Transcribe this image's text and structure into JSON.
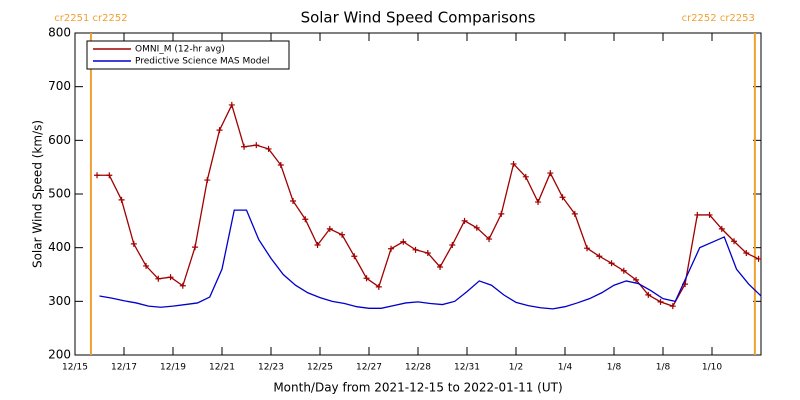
{
  "chart_data": {
    "type": "line",
    "title": "Solar Wind Speed Comparisons",
    "xlabel": "Month/Day from 2021-12-15 to 2022-01-11 (UT)",
    "ylabel": "Solar Wind Speed (km/s)",
    "xlim": [
      0,
      28
    ],
    "ylim": [
      200,
      800
    ],
    "yticks": [
      200,
      300,
      400,
      500,
      600,
      700,
      800
    ],
    "xticks": [
      {
        "value": 0,
        "label": "12/15"
      },
      {
        "value": 2,
        "label": "12/17"
      },
      {
        "value": 4,
        "label": "12/19"
      },
      {
        "value": 6,
        "label": "12/21"
      },
      {
        "value": 8,
        "label": "12/23"
      },
      {
        "value": 10,
        "label": "12/25"
      },
      {
        "value": 12,
        "label": "12/27"
      },
      {
        "value": 14,
        "label": "12/28"
      },
      {
        "value": 16,
        "label": "12/31"
      },
      {
        "value": 18,
        "label": "1/2"
      },
      {
        "value": 20,
        "label": "1/4"
      },
      {
        "value": 22,
        "label": "1/8"
      },
      {
        "value": 24,
        "label": "1/8"
      },
      {
        "value": 26,
        "label": "1/10"
      }
    ],
    "annotations": [
      {
        "text": "cr2251 cr2252",
        "x": 0.65,
        "color": "#f0a030"
      },
      {
        "text": "cr2252 cr2253",
        "x": 27.75,
        "color": "#f0a030"
      }
    ],
    "legend": "upper left",
    "series": [
      {
        "name": "OMNI_M (12-hr avg)",
        "color": "#a00000",
        "marker": "+",
        "x": [
          0.9,
          1.4,
          1.9,
          2.4,
          2.9,
          3.4,
          3.9,
          4.4,
          4.9,
          5.4,
          5.9,
          6.4,
          6.9,
          7.4,
          7.9,
          8.4,
          8.9,
          9.4,
          9.9,
          10.4,
          10.9,
          11.4,
          11.9,
          12.4,
          12.9,
          13.4,
          13.9,
          14.4,
          14.9,
          15.4,
          15.9,
          16.4,
          16.9,
          17.4,
          17.9,
          18.4,
          18.9,
          19.4,
          19.9,
          20.4,
          20.9,
          21.4,
          21.9,
          22.4,
          22.9,
          23.4,
          23.9,
          24.4,
          24.9,
          25.4,
          25.9,
          26.4,
          26.9,
          27.4,
          27.9
        ],
        "values": [
          535,
          535,
          489,
          407,
          366,
          342,
          345,
          329,
          401,
          526,
          619,
          666,
          588,
          591,
          584,
          554,
          487,
          453,
          405,
          435,
          424,
          384,
          343,
          327,
          398,
          411,
          396,
          390,
          364,
          405,
          450,
          437,
          416,
          463,
          556,
          532,
          485,
          539,
          494,
          463,
          399,
          384,
          371,
          357,
          340,
          312,
          299,
          291,
          332,
          461,
          461,
          435,
          412,
          390,
          379
        ]
      },
      {
        "name": "Predictive Science MAS Model",
        "color": "#0000cc",
        "x": [
          1,
          1.5,
          2,
          2.5,
          3,
          3.5,
          4,
          4.5,
          5,
          5.5,
          6,
          6.5,
          7,
          7.5,
          8,
          8.5,
          9,
          9.5,
          10,
          10.5,
          11,
          11.5,
          12,
          12.5,
          13,
          13.5,
          14,
          14.5,
          15,
          15.5,
          16,
          16.5,
          17,
          17.5,
          18,
          18.5,
          19,
          19.5,
          20,
          20.5,
          21,
          21.5,
          22,
          22.5,
          23,
          23.5,
          24,
          24.5,
          25,
          25.5,
          26,
          26.5,
          27,
          27.5,
          28
        ],
        "values": [
          310,
          306,
          301,
          297,
          291,
          289,
          291,
          294,
          297,
          308,
          360,
          470,
          470,
          415,
          380,
          350,
          330,
          316,
          307,
          300,
          296,
          290,
          287,
          287,
          292,
          297,
          299,
          296,
          294,
          300,
          318,
          338,
          330,
          312,
          298,
          292,
          288,
          286,
          290,
          297,
          305,
          316,
          330,
          338,
          333,
          320,
          305,
          300,
          350,
          400,
          410,
          420,
          360,
          332,
          310
        ]
      }
    ]
  }
}
